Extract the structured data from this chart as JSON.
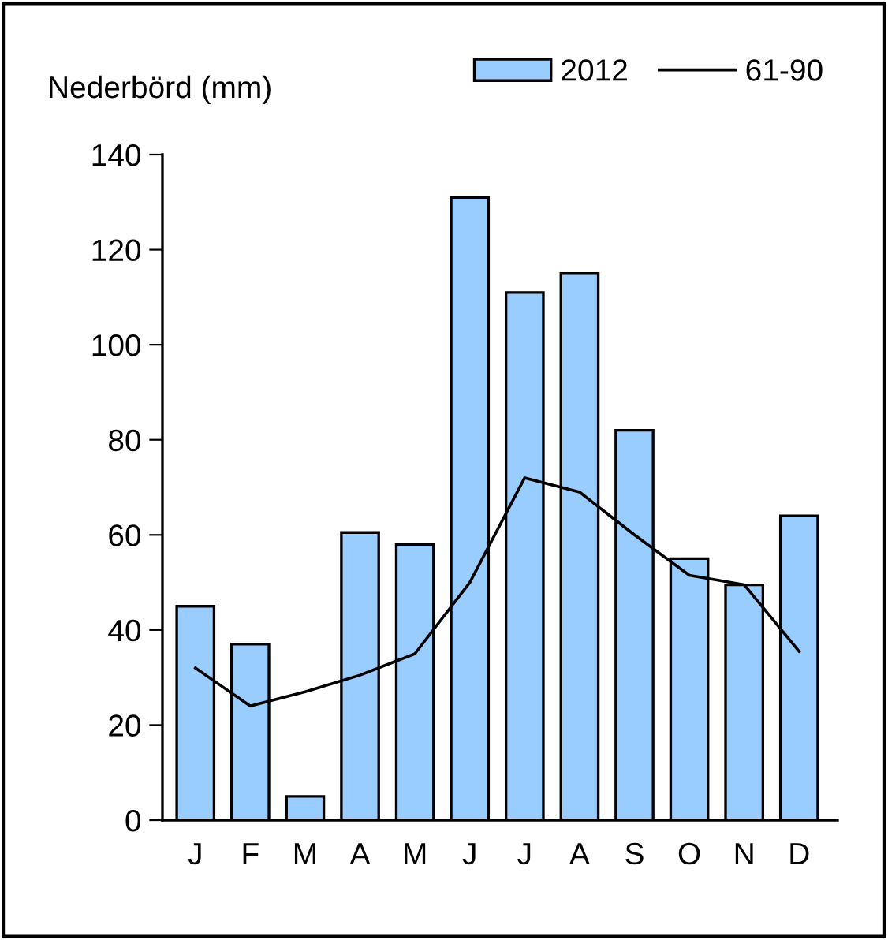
{
  "chart_data": {
    "type": "bar",
    "ylabel": "Nederbörd (mm)",
    "categories": [
      "J",
      "F",
      "M",
      "A",
      "M",
      "J",
      "J",
      "A",
      "S",
      "O",
      "N",
      "D"
    ],
    "series": [
      {
        "name": "2012",
        "color": "#99ccff",
        "values": [
          45,
          37,
          5,
          60.5,
          58,
          131,
          111,
          115,
          82,
          55,
          49.5,
          64
        ]
      },
      {
        "name": "61-90",
        "type": "line",
        "color": "#000000",
        "values": [
          32,
          24,
          27,
          30.5,
          35,
          50,
          72,
          69,
          60,
          51.5,
          49.5,
          35.5
        ]
      }
    ],
    "ylim": [
      0,
      140
    ],
    "yticks": [
      0,
      20,
      40,
      60,
      80,
      100,
      120,
      140
    ],
    "grid": false,
    "legend": "top right",
    "marker": "none",
    "line_style": "solid"
  }
}
